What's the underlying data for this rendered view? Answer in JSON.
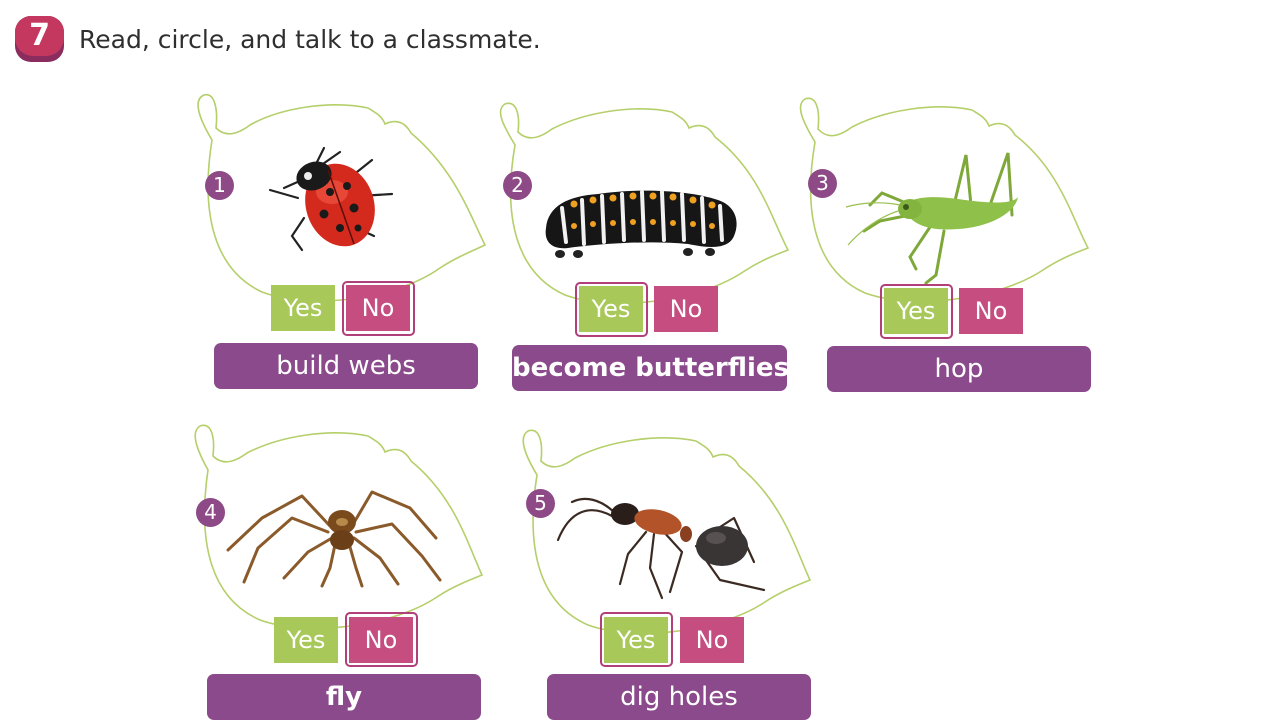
{
  "exercise": {
    "number": "7",
    "instruction": "Read, circle, and talk to a classmate."
  },
  "items": [
    {
      "number": "1",
      "picture": "ladybug",
      "yes": "Yes",
      "no": "No",
      "circled": "No",
      "label": "build webs"
    },
    {
      "number": "2",
      "picture": "caterpillar",
      "yes": "Yes",
      "no": "No",
      "circled": "Yes",
      "label": "become butterflies"
    },
    {
      "number": "3",
      "picture": "grasshopper",
      "yes": "Yes",
      "no": "No",
      "circled": "Yes",
      "label": "hop"
    },
    {
      "number": "4",
      "picture": "spider",
      "yes": "Yes",
      "no": "No",
      "circled": "No",
      "label": "fly"
    },
    {
      "number": "5",
      "picture": "ant",
      "yes": "Yes",
      "no": "No",
      "circled": "Yes",
      "label": "dig holes"
    }
  ],
  "colors": {
    "leaf_outline": "#b5cf6a",
    "yes": "#a9c85a",
    "no": "#c64d80",
    "label": "#8b4a8b",
    "number": "#8d4a86",
    "ring": "#b1407a"
  }
}
